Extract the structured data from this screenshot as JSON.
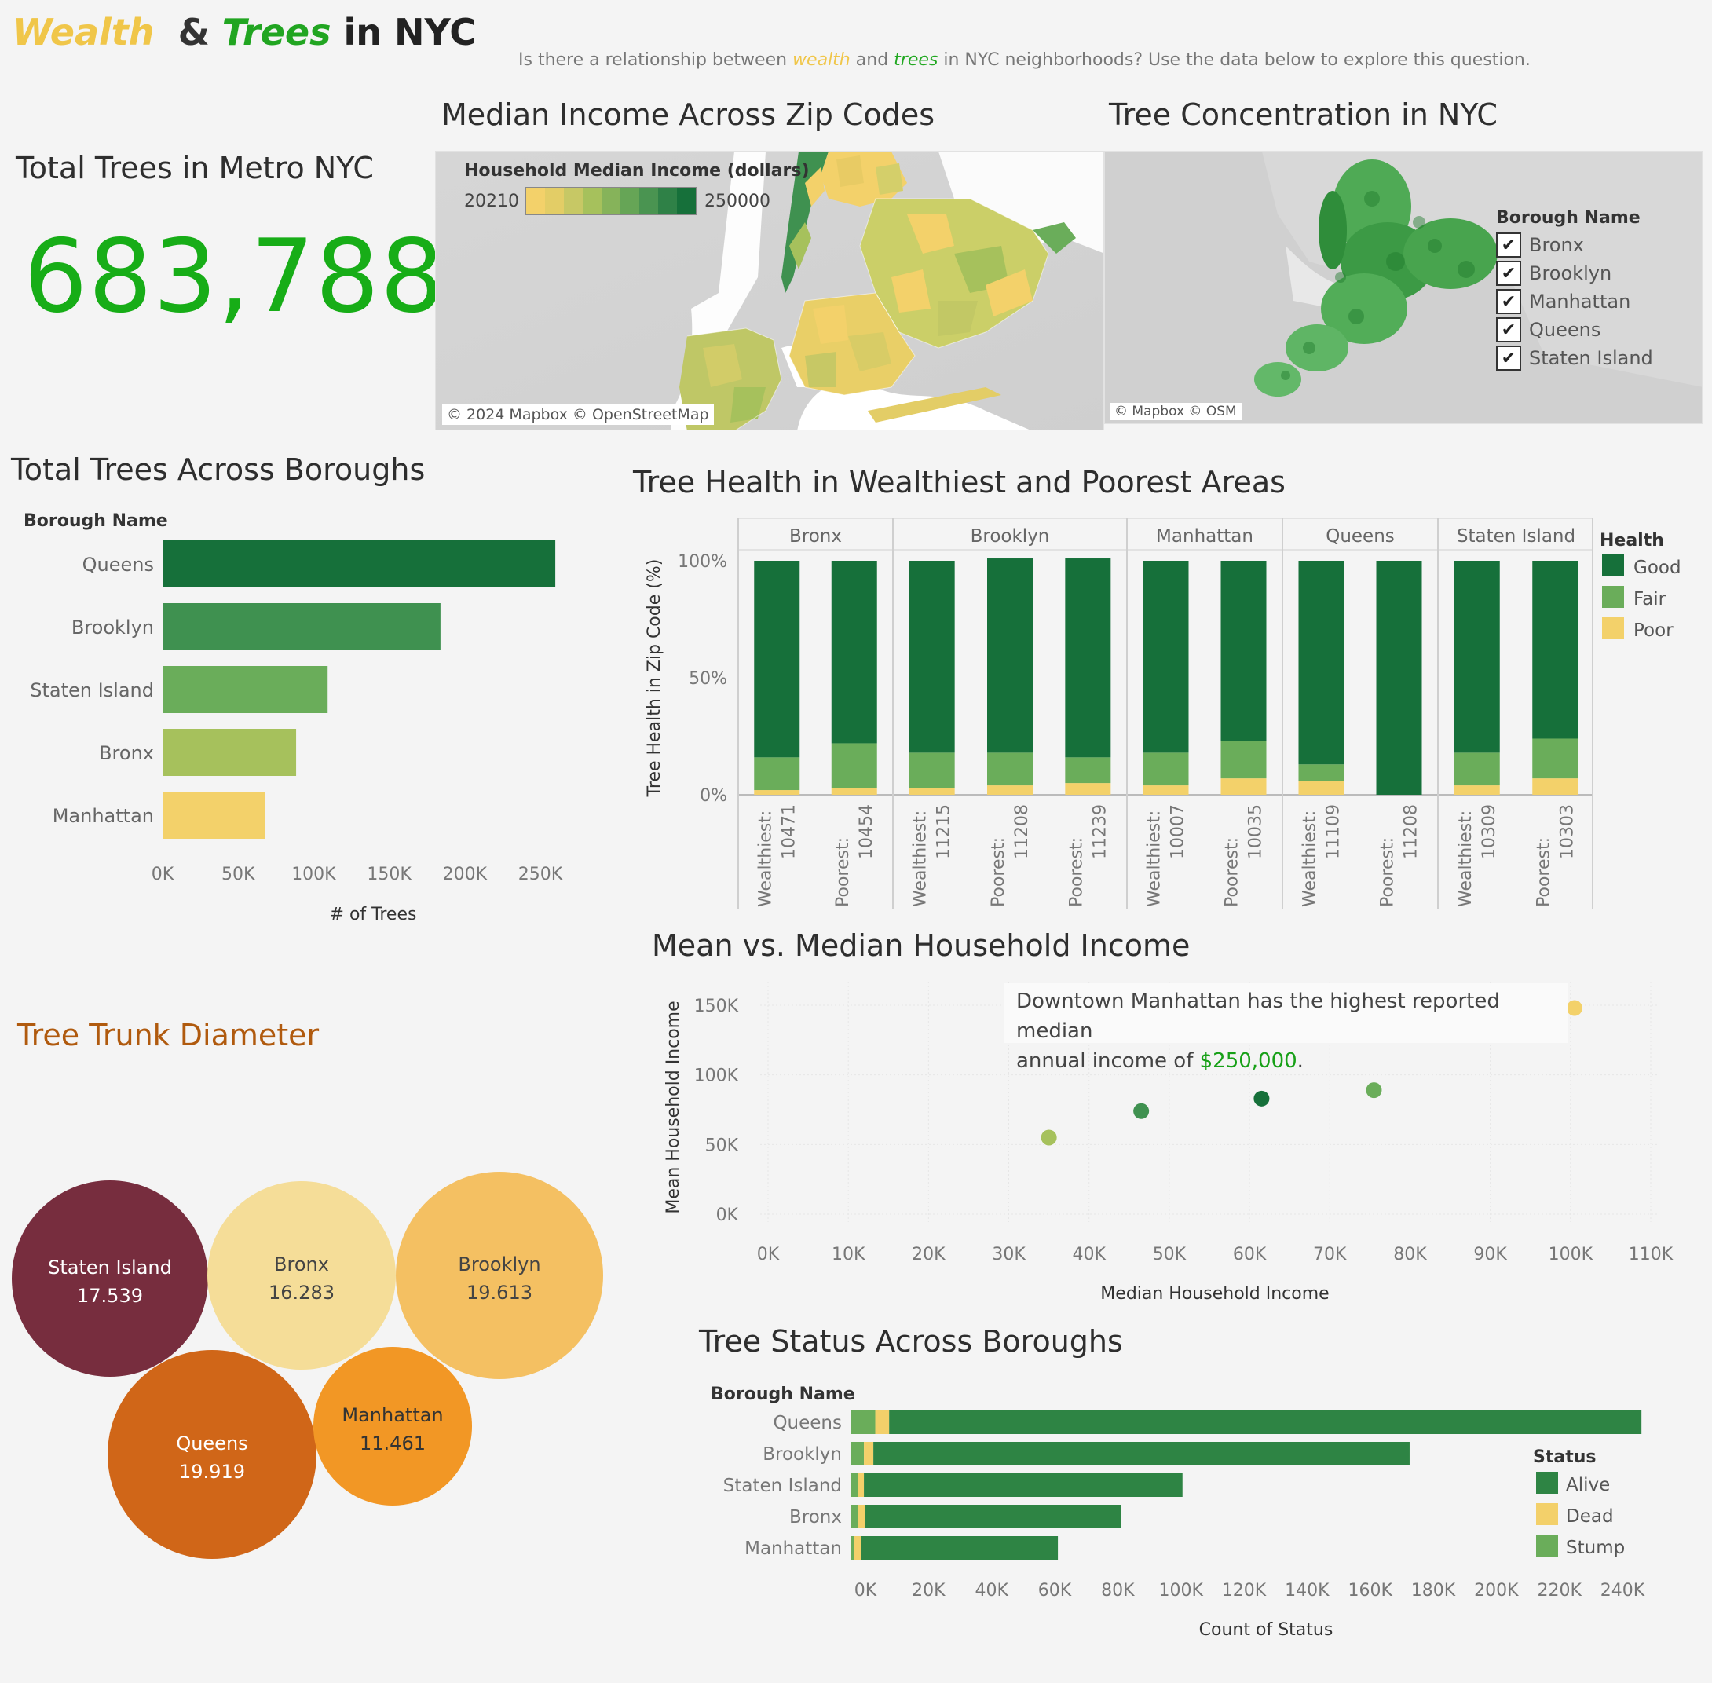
{
  "header": {
    "title_wealth": "Wealth",
    "title_amp": "&",
    "title_trees": "Trees",
    "title_rest": "in NYC",
    "subtitle_pre": "Is there a relationship between",
    "subtitle_wealth": "wealth",
    "subtitle_and": "and",
    "subtitle_trees": "trees",
    "subtitle_post": "in NYC neighborhoods? Use the data below to explore this question."
  },
  "colors": {
    "dark_green": "#16703a",
    "mid_green": "#3f9150",
    "light_green": "#6aad5a",
    "olive": "#a6c15c",
    "yellow": "#f3d16a",
    "status_alive": "#2e8444",
    "status_dead": "#f3d06a",
    "status_stump": "#6aad5a"
  },
  "kpi": {
    "title": "Total Trees in Metro NYC",
    "value": "683,788"
  },
  "income_map": {
    "title": "Median Income Across Zip Codes",
    "legend_title": "Household Median Income (dollars)",
    "legend_min": "20210",
    "legend_max": "250000",
    "attribution": "© 2024 Mapbox © OpenStreetMap"
  },
  "tree_map": {
    "title": "Tree Concentration in NYC",
    "filter_title": "Borough Name",
    "filters": [
      {
        "label": "Bronx",
        "checked": true
      },
      {
        "label": "Brooklyn",
        "checked": true
      },
      {
        "label": "Manhattan",
        "checked": true
      },
      {
        "label": "Queens",
        "checked": true
      },
      {
        "label": "Staten Island",
        "checked": true
      }
    ],
    "attribution": "© Mapbox © OSM"
  },
  "chart_data": [
    {
      "id": "total_trees",
      "type": "bar",
      "orientation": "horizontal",
      "title": "Total Trees Across Boroughs",
      "ylabel": "Borough Name",
      "xlabel": "# of Trees",
      "categories": [
        "Queens",
        "Brooklyn",
        "Staten Island",
        "Bronx",
        "Manhattan"
      ],
      "values": [
        250551,
        177293,
        105318,
        85203,
        65423
      ],
      "colors": [
        "#16703a",
        "#3f9150",
        "#6aad5a",
        "#a6c15c",
        "#f3d16a"
      ],
      "xticks": [
        "0K",
        "50K",
        "100K",
        "150K",
        "200K",
        "250K"
      ],
      "xlim": [
        0,
        250000
      ],
      "grid": false
    },
    {
      "id": "tree_health",
      "type": "bar",
      "stacked": true,
      "title": "Tree Health in Wealthiest and Poorest Areas",
      "ylabel": "Tree Health in Zip Code (%)",
      "yticks": [
        "100%",
        "50%",
        "0%"
      ],
      "legend_title": "Health",
      "legend_position": "right",
      "series_names": [
        "Good",
        "Fair",
        "Poor"
      ],
      "series_colors": [
        "#16703a",
        "#6aad5a",
        "#f3d16a"
      ],
      "groups": [
        {
          "borough": "Bronx",
          "bars": [
            {
              "l1": "Wealthiest:",
              "l2": "10471",
              "good": 84,
              "fair": 14,
              "poor": 2
            },
            {
              "l1": "Poorest:",
              "l2": "10454",
              "good": 78,
              "fair": 19,
              "poor": 3
            }
          ]
        },
        {
          "borough": "Brooklyn",
          "bars": [
            {
              "l1": "Wealthiest:",
              "l2": "11215",
              "good": 82,
              "fair": 15,
              "poor": 3
            },
            {
              "l1": "Poorest:",
              "l2": "11208",
              "good": 83,
              "fair": 14,
              "poor": 4
            },
            {
              "l1": "Poorest:",
              "l2": "11239",
              "good": 85,
              "fair": 11,
              "poor": 5
            }
          ]
        },
        {
          "borough": "Manhattan",
          "bars": [
            {
              "l1": "Wealthiest:",
              "l2": "10007",
              "good": 82,
              "fair": 14,
              "poor": 4
            },
            {
              "l1": "Poorest:",
              "l2": "10035",
              "good": 77,
              "fair": 16,
              "poor": 7
            }
          ]
        },
        {
          "borough": "Queens",
          "bars": [
            {
              "l1": "Wealthiest:",
              "l2": "11109",
              "good": 87,
              "fair": 7,
              "poor": 6
            },
            {
              "l1": "Poorest:",
              "l2": "11208",
              "good": 100,
              "fair": 0,
              "poor": 0
            }
          ]
        },
        {
          "borough": "Staten Island",
          "bars": [
            {
              "l1": "Wealthiest:",
              "l2": "10309",
              "good": 82,
              "fair": 14,
              "poor": 4
            },
            {
              "l1": "Poorest:",
              "l2": "10303",
              "good": 76,
              "fair": 17,
              "poor": 7
            }
          ]
        }
      ]
    },
    {
      "id": "trunk_diameter",
      "type": "bubble",
      "title": "Tree Trunk Diameter",
      "items": [
        {
          "label": "Staten Island",
          "value": "17.539",
          "color": "#772d3e",
          "text": "#ffffff"
        },
        {
          "label": "Bronx",
          "value": "16.283",
          "color": "#f5dd98",
          "text": "#444444"
        },
        {
          "label": "Brooklyn",
          "value": "19.613",
          "color": "#f4c062",
          "text": "#444444"
        },
        {
          "label": "Queens",
          "value": "19.919",
          "color": "#d06618",
          "text": "#ffffff"
        },
        {
          "label": "Manhattan",
          "value": "11.461",
          "color": "#f29725",
          "text": "#333333"
        }
      ]
    },
    {
      "id": "mean_vs_median",
      "type": "scatter",
      "title": "Mean vs. Median Household Income",
      "xlabel": "Median Household Income",
      "ylabel": "Mean Household Income",
      "xlim": [
        0,
        110000
      ],
      "ylim": [
        0,
        150000
      ],
      "xticks": [
        "0K",
        "10K",
        "20K",
        "30K",
        "40K",
        "50K",
        "60K",
        "70K",
        "80K",
        "90K",
        "100K",
        "110K"
      ],
      "yticks": [
        "150K",
        "100K",
        "50K",
        "0K"
      ],
      "points": [
        {
          "x": 35000,
          "y": 55000,
          "color": "#a6c15c"
        },
        {
          "x": 46500,
          "y": 74000,
          "color": "#3f9150"
        },
        {
          "x": 61500,
          "y": 83000,
          "color": "#16703a"
        },
        {
          "x": 75500,
          "y": 89000,
          "color": "#6aad5a"
        },
        {
          "x": 100500,
          "y": 148000,
          "color": "#f3d16a"
        }
      ],
      "annotation_pre": "Downtown Manhattan has the highest reported median",
      "annotation_mid": "annual income of",
      "annotation_value": "$250,000",
      "annotation_end": "."
    },
    {
      "id": "tree_status",
      "type": "bar",
      "orientation": "horizontal",
      "stacked": true,
      "title": "Tree Status Across Boroughs",
      "ylabel": "Borough Name",
      "xlabel": "Count of Status",
      "legend_title": "Status",
      "legend_position": "right",
      "series_names": [
        "Alive",
        "Dead",
        "Stump"
      ],
      "categories": [
        "Queens",
        "Brooklyn",
        "Staten Island",
        "Bronx",
        "Manhattan"
      ],
      "rows": [
        {
          "stump": 7600,
          "dead": 4400,
          "alive": 238500
        },
        {
          "stump": 4000,
          "dead": 3000,
          "alive": 170000
        },
        {
          "stump": 2000,
          "dead": 2000,
          "alive": 101000
        },
        {
          "stump": 2000,
          "dead": 2400,
          "alive": 81000
        },
        {
          "stump": 1000,
          "dead": 2000,
          "alive": 62500
        }
      ],
      "xticks": [
        "0K",
        "20K",
        "40K",
        "60K",
        "80K",
        "100K",
        "120K",
        "140K",
        "160K",
        "180K",
        "200K",
        "220K",
        "240K"
      ],
      "xlim": [
        0,
        240000
      ]
    }
  ]
}
